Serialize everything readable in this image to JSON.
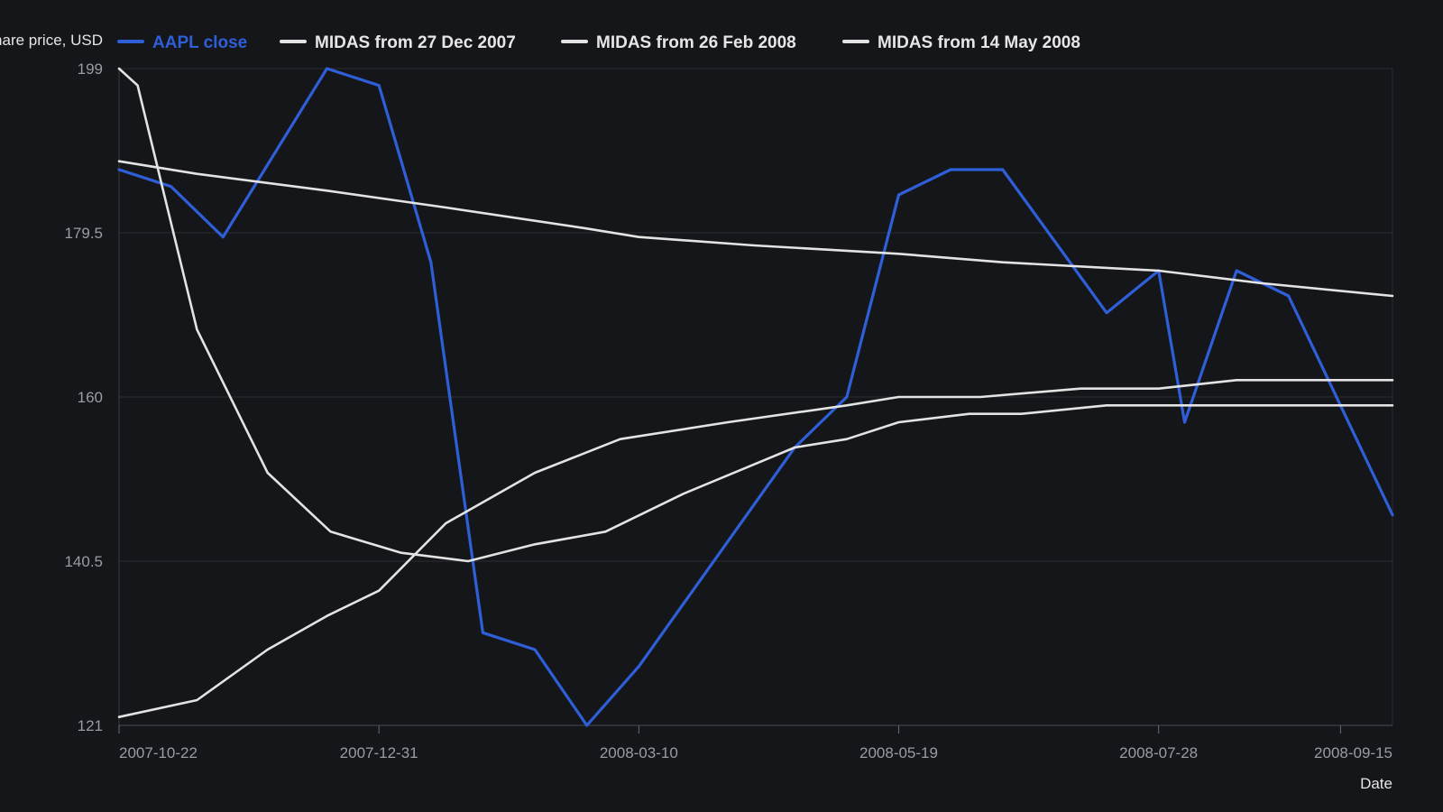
{
  "chart_data": {
    "type": "line",
    "title": "",
    "xlabel": "Date",
    "ylabel": "Share price, USD",
    "x_type": "date",
    "xlim": [
      "2007-10-22",
      "2008-09-29"
    ],
    "ylim": [
      121,
      199
    ],
    "y_ticks": [
      {
        "value": 121,
        "label": "121"
      },
      {
        "value": 140.5,
        "label": "140.5"
      },
      {
        "value": 160,
        "label": "160"
      },
      {
        "value": 179.5,
        "label": "179.5"
      },
      {
        "value": 199,
        "label": "199"
      }
    ],
    "x_ticks": [
      {
        "value": "2007-10-22",
        "label": "2007-10-22"
      },
      {
        "value": "2007-12-31",
        "label": "2007-12-31"
      },
      {
        "value": "2008-03-10",
        "label": "2008-03-10"
      },
      {
        "value": "2008-05-19",
        "label": "2008-05-19"
      },
      {
        "value": "2008-07-28",
        "label": "2008-07-28"
      },
      {
        "value": "2008-09-15",
        "label": "2008-09-15"
      }
    ],
    "grid": true,
    "legend_position": "top",
    "series": [
      {
        "name": "AAPL close",
        "color": "#2f5fd8",
        "points": [
          [
            "2007-10-22",
            187
          ],
          [
            "2007-11-05",
            185
          ],
          [
            "2007-11-19",
            179
          ],
          [
            "2007-12-17",
            199
          ],
          [
            "2007-12-31",
            197
          ],
          [
            "2008-01-14",
            176
          ],
          [
            "2008-01-28",
            132
          ],
          [
            "2008-02-11",
            130
          ],
          [
            "2008-02-25",
            121
          ],
          [
            "2008-03-10",
            128
          ],
          [
            "2008-04-21",
            154
          ],
          [
            "2008-05-05",
            160
          ],
          [
            "2008-05-19",
            184
          ],
          [
            "2008-06-02",
            187
          ],
          [
            "2008-06-16",
            187
          ],
          [
            "2008-07-14",
            170
          ],
          [
            "2008-07-28",
            175
          ],
          [
            "2008-08-04",
            157
          ],
          [
            "2008-08-18",
            175
          ],
          [
            "2008-09-01",
            172
          ],
          [
            "2008-09-29",
            146
          ]
        ]
      },
      {
        "name": "MIDAS from 27 Dec 2007",
        "color": "#e3e3e3",
        "points": [
          [
            "2007-10-22",
            199
          ],
          [
            "2007-10-27",
            197
          ],
          [
            "2007-11-12",
            168
          ],
          [
            "2007-12-01",
            151
          ],
          [
            "2007-12-18",
            144
          ],
          [
            "2008-01-06",
            141.5
          ],
          [
            "2008-01-24",
            140.5
          ],
          [
            "2008-02-11",
            142.5
          ],
          [
            "2008-03-01",
            144
          ],
          [
            "2008-03-22",
            148.5
          ],
          [
            "2008-04-21",
            154
          ],
          [
            "2008-05-05",
            155
          ],
          [
            "2008-05-19",
            157
          ],
          [
            "2008-06-07",
            158
          ],
          [
            "2008-06-21",
            158
          ],
          [
            "2008-07-14",
            159
          ],
          [
            "2008-07-28",
            159
          ],
          [
            "2008-08-18",
            159
          ],
          [
            "2008-09-29",
            159
          ]
        ]
      },
      {
        "name": "MIDAS from 26 Feb 2008",
        "color": "#e3e3e3",
        "points": [
          [
            "2007-10-22",
            188
          ],
          [
            "2007-11-12",
            186.5
          ],
          [
            "2007-12-17",
            184.5
          ],
          [
            "2008-01-18",
            182.5
          ],
          [
            "2008-02-25",
            180
          ],
          [
            "2008-03-10",
            179
          ],
          [
            "2008-04-10",
            178
          ],
          [
            "2008-05-19",
            177
          ],
          [
            "2008-06-16",
            176
          ],
          [
            "2008-07-28",
            175
          ],
          [
            "2008-08-25",
            173.5
          ],
          [
            "2008-09-29",
            172
          ]
        ]
      },
      {
        "name": "MIDAS from 14 May 2008",
        "color": "#e3e3e3",
        "points": [
          [
            "2007-10-22",
            122
          ],
          [
            "2007-11-12",
            124
          ],
          [
            "2007-12-01",
            130
          ],
          [
            "2007-12-17",
            134
          ],
          [
            "2007-12-31",
            137
          ],
          [
            "2008-01-18",
            145
          ],
          [
            "2008-02-11",
            151
          ],
          [
            "2008-03-05",
            155
          ],
          [
            "2008-04-03",
            157
          ],
          [
            "2008-05-05",
            159
          ],
          [
            "2008-05-19",
            160
          ],
          [
            "2008-06-10",
            160
          ],
          [
            "2008-07-07",
            161
          ],
          [
            "2008-07-28",
            161
          ],
          [
            "2008-08-18",
            162
          ],
          [
            "2008-09-29",
            162
          ]
        ]
      }
    ]
  }
}
